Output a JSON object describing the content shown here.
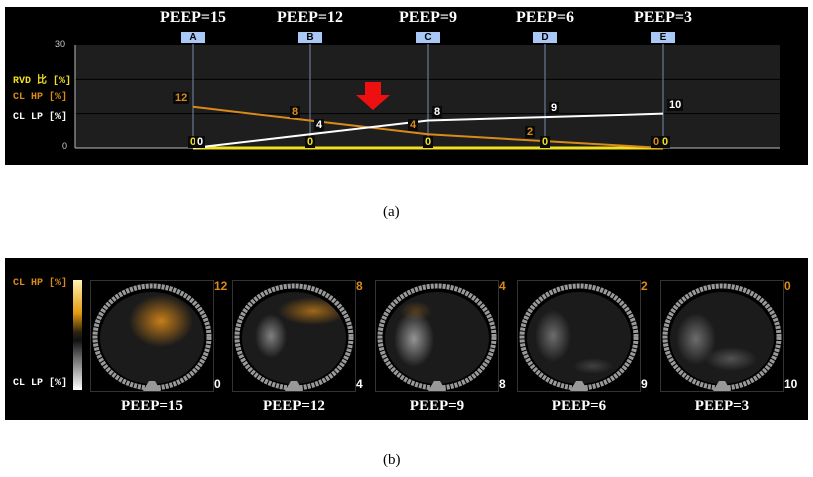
{
  "captions": {
    "a": "(a)",
    "b": "(b)"
  },
  "chart_data": {
    "type": "line",
    "categories": [
      "A",
      "B",
      "C",
      "D",
      "E"
    ],
    "category_titles": [
      "PEEP=15",
      "PEEP=12",
      "PEEP=9",
      "PEEP=6",
      "PEEP=3"
    ],
    "ylim": [
      0,
      30
    ],
    "yticks": [
      "0",
      "30"
    ],
    "grid": true,
    "series": [
      {
        "name": "RVD 比 [%]",
        "color": "#f0e020",
        "values": [
          0,
          0,
          0,
          0,
          0
        ]
      },
      {
        "name": "CL HP [%]",
        "color": "#d98a1a",
        "values": [
          12,
          8,
          4,
          2,
          0
        ]
      },
      {
        "name": "CL LP [%]",
        "color": "#ffffff",
        "values": [
          0,
          4,
          8,
          9,
          10
        ]
      }
    ],
    "annotation": "red-down-arrow between B and C"
  },
  "images": {
    "colorbar_top": "CL HP [%]",
    "colorbar_bottom": "CL LP [%]",
    "items": [
      {
        "title": "PEEP=15",
        "hp": "12",
        "lp": "0"
      },
      {
        "title": "PEEP=12",
        "hp": "8",
        "lp": "4"
      },
      {
        "title": "PEEP=9",
        "hp": "4",
        "lp": "8"
      },
      {
        "title": "PEEP=6",
        "hp": "2",
        "lp": "9"
      },
      {
        "title": "PEEP=3",
        "hp": "0",
        "lp": "10"
      }
    ]
  }
}
